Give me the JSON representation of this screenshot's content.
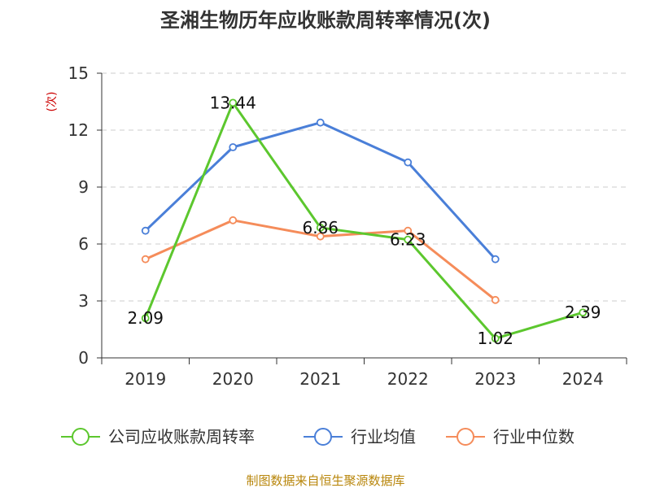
{
  "chart_data": {
    "type": "line",
    "title": "圣湘生物历年应收账款周转率情况(次)",
    "ylabel": "(次)",
    "xlabel": "",
    "categories": [
      "2019",
      "2020",
      "2021",
      "2022",
      "2023",
      "2024"
    ],
    "ylim": [
      0,
      15
    ],
    "yticks": [
      0,
      3,
      6,
      9,
      12,
      15
    ],
    "grid": true,
    "legend_position": "bottom",
    "series": [
      {
        "name": "公司应收账款周转率",
        "color": "#5cc72e",
        "values": [
          2.09,
          13.44,
          6.86,
          6.23,
          1.02,
          2.39
        ],
        "labels": [
          "2.09",
          "13.44",
          "6.86",
          "6.23",
          "1.02",
          "2.39"
        ]
      },
      {
        "name": "行业均值",
        "color": "#4a7fd8",
        "values": [
          6.7,
          11.1,
          12.4,
          10.3,
          5.2,
          null
        ]
      },
      {
        "name": "行业中位数",
        "color": "#f58c5a",
        "values": [
          5.2,
          7.25,
          6.4,
          6.7,
          3.05,
          null
        ]
      }
    ],
    "source": "制图数据来自恒生聚源数据库"
  }
}
